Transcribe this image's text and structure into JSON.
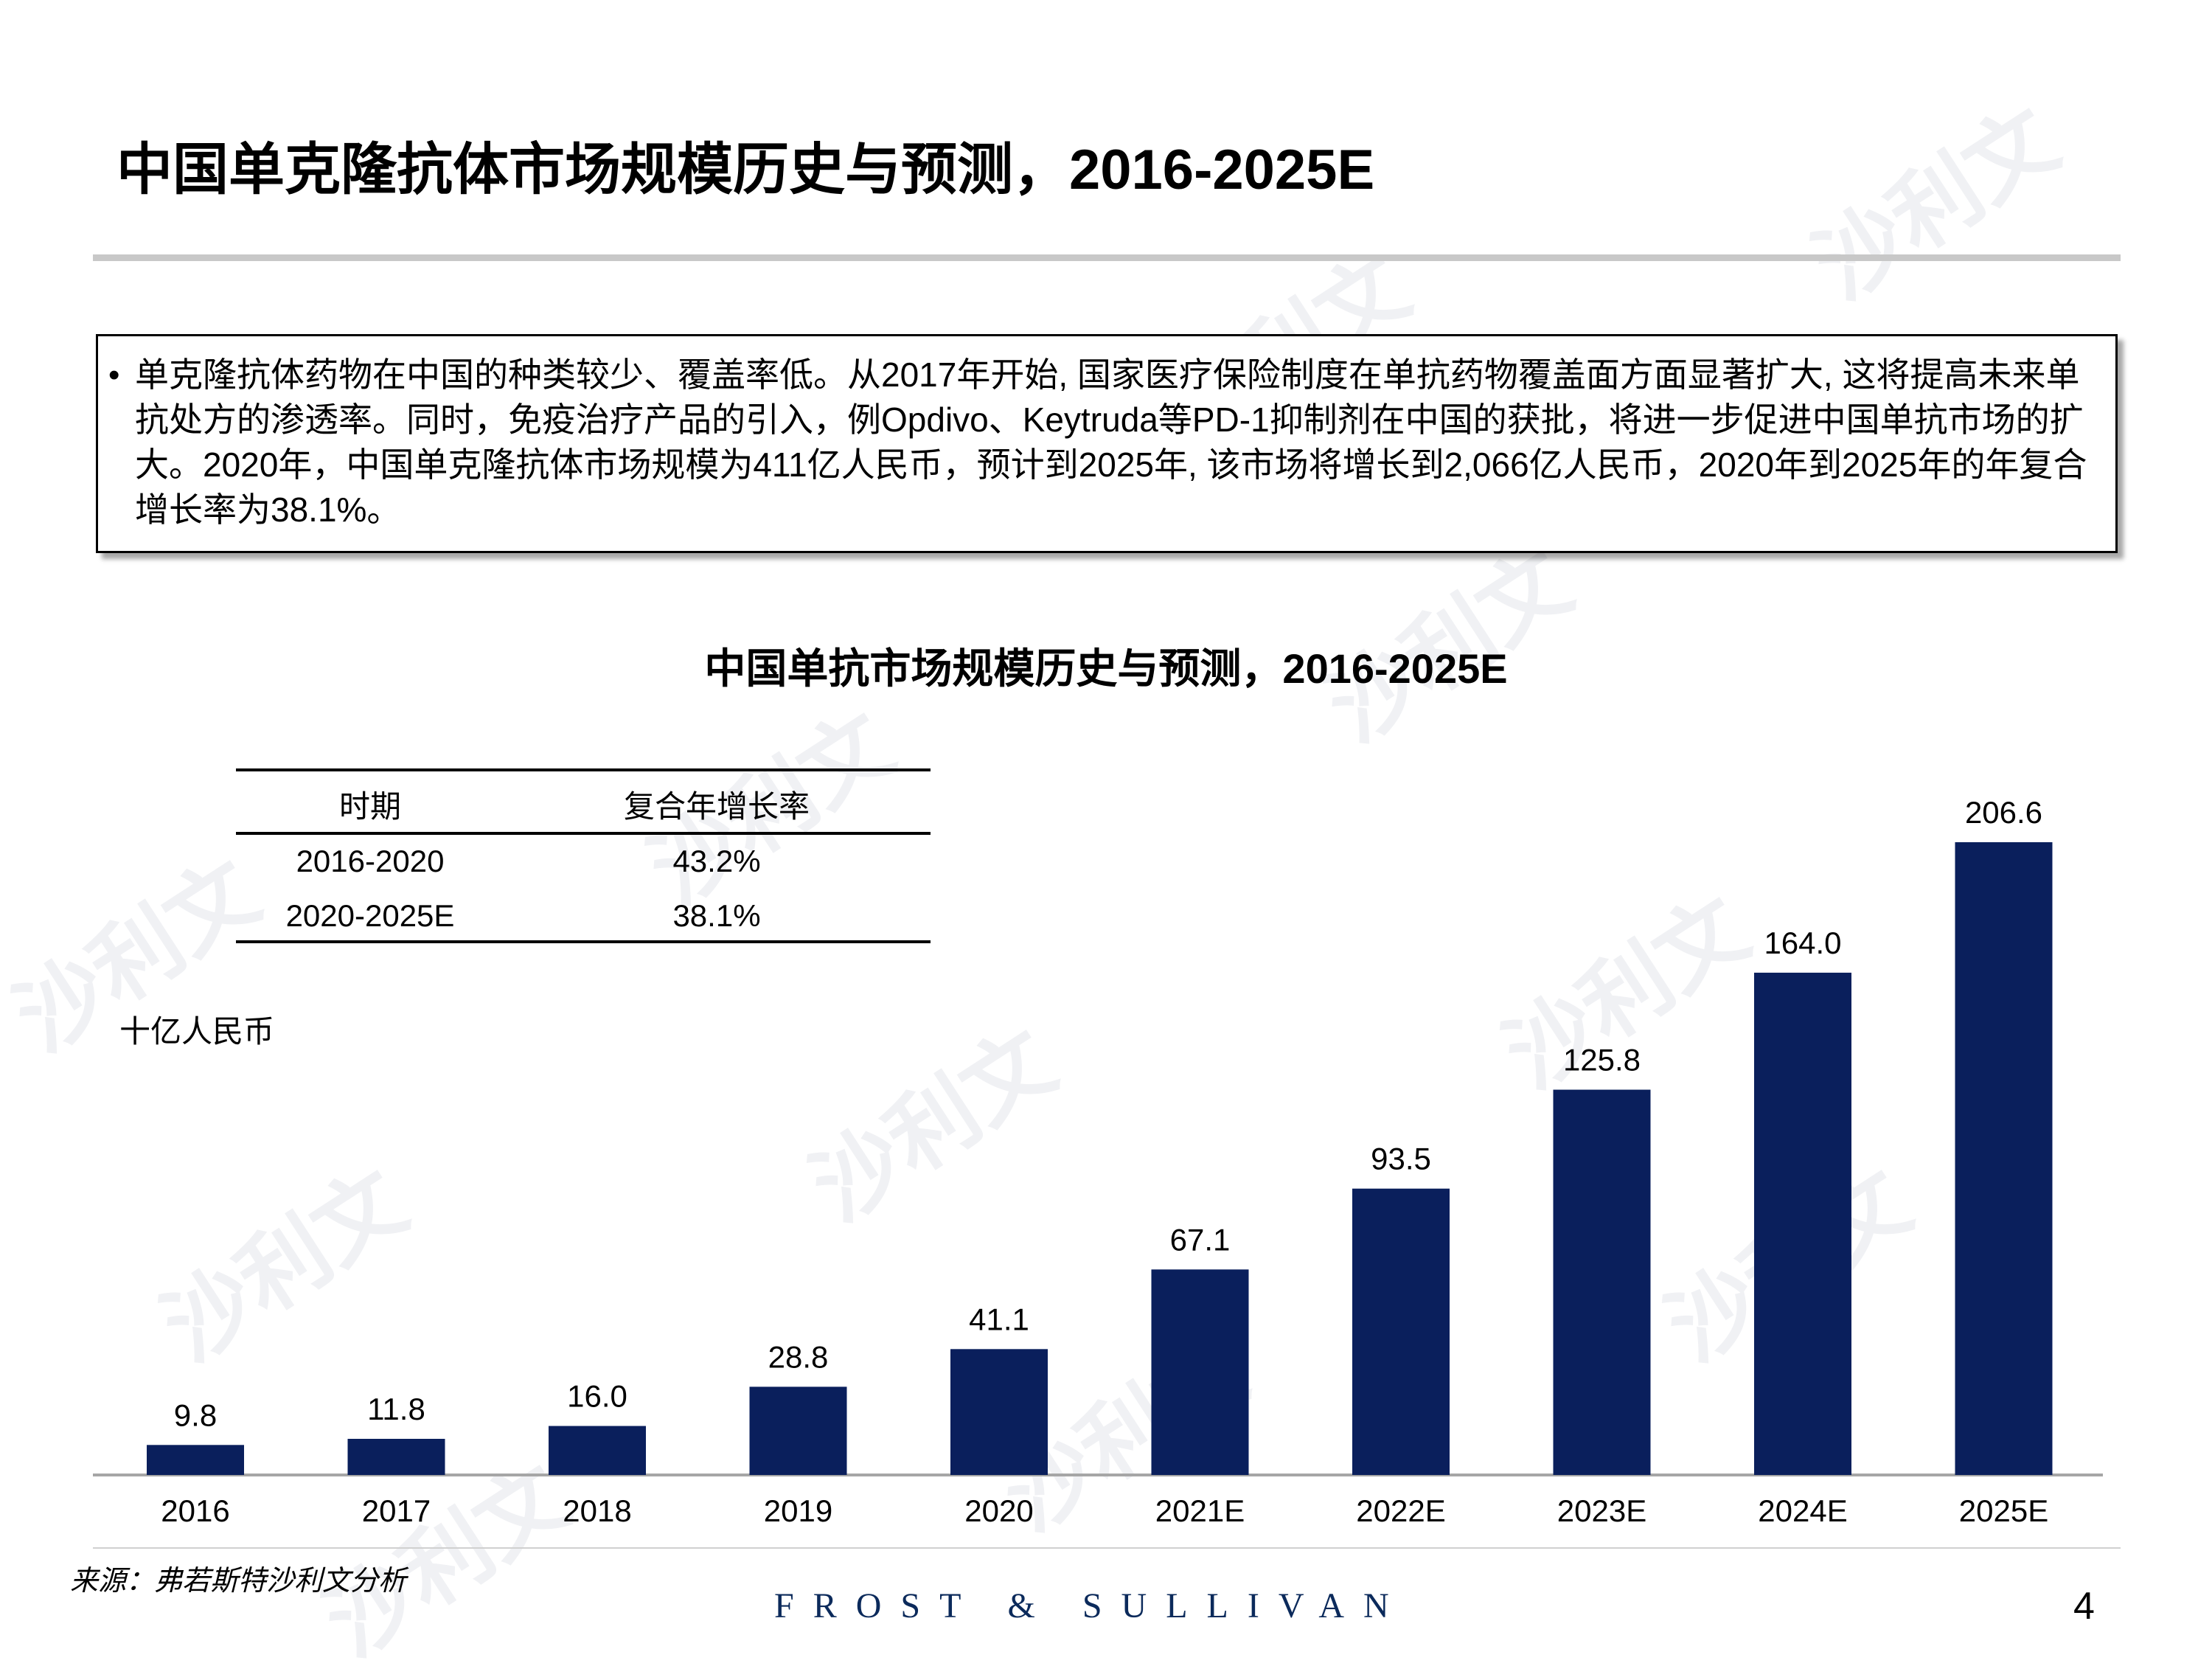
{
  "header": {
    "title": "中国单克隆抗体市场规模历史与预测，2016-2025E"
  },
  "summary": {
    "bullet": "•",
    "text": "单克隆抗体药物在中国的种类较少、覆盖率低。从2017年开始, 国家医疗保险制度在单抗药物覆盖面方面显著扩大, 这将提高未来单抗处方的渗透率。同时，免疫治疗产品的引入，例Opdivo、Keytruda等PD-1抑制剂在中国的获批，将进一步促进中国单抗市场的扩大。2020年，中国单克隆抗体市场规模为411亿人民币，预计到2025年, 该市场将增长到2,066亿人民币，2020年到2025年的年复合增长率为38.1%。"
  },
  "cagr_table": {
    "headers": [
      "时期",
      "复合年增长率"
    ],
    "rows": [
      [
        "2016-2020",
        "43.2%"
      ],
      [
        "2020-2025E",
        "38.1%"
      ]
    ]
  },
  "chart_data": {
    "type": "bar",
    "title": "中国单抗市场规模历史与预测，2016-2025E",
    "unit_label": "十亿人民币",
    "categories": [
      "2016",
      "2017",
      "2018",
      "2019",
      "2020",
      "2021E",
      "2022E",
      "2023E",
      "2024E",
      "2025E"
    ],
    "values": [
      9.8,
      11.8,
      16.0,
      28.8,
      41.1,
      67.1,
      93.5,
      125.8,
      164.0,
      206.6
    ],
    "value_labels": [
      "9.8",
      "11.8",
      "16.0",
      "28.8",
      "41.1",
      "67.1",
      "93.5",
      "125.8",
      "164.0",
      "206.6"
    ],
    "xlabel": "",
    "ylabel": "",
    "ylim": [
      0,
      206.6
    ],
    "bar_color": "#0a1f5c",
    "grid": false,
    "legend": "none"
  },
  "footer": {
    "source": "来源：弗若斯特沙利文分析",
    "brand": "FROST & SULLIVAN",
    "page": "4"
  },
  "watermark": {
    "text": "沙利文"
  }
}
